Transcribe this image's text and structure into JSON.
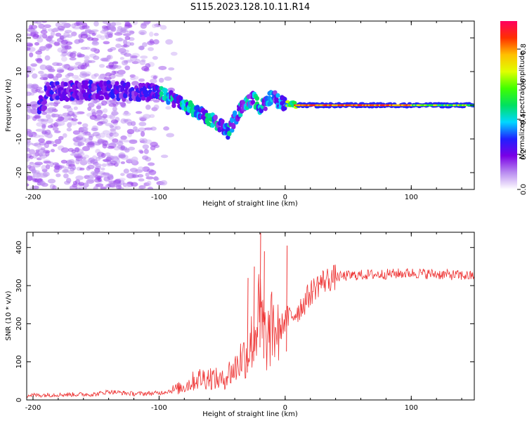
{
  "figure": {
    "title": "S115.2023.128.10.11.R14"
  },
  "chart_data": [
    {
      "type": "heatmap",
      "xlabel": "Height of straight line (km)",
      "ylabel": "Frequency (Hz)",
      "xlim": [
        -205,
        150
      ],
      "ylim": [
        -25,
        25
      ],
      "xticks": [
        -200,
        -100,
        0,
        100
      ],
      "yticks": [
        -20,
        -10,
        0,
        10,
        20
      ],
      "xtick_labels": [
        "-200",
        "-100",
        "0",
        "100"
      ],
      "ytick_labels": [
        "-20",
        "-10",
        "0",
        "10",
        "20"
      ],
      "grid": false,
      "colorbar": {
        "label": "Normalized spectral amplitude",
        "range": [
          0,
          0.96
        ],
        "ticks": [
          0.0,
          0.2,
          0.4,
          0.6,
          0.8
        ],
        "tick_labels": [
          "0.0",
          "0.2",
          "0.4",
          "0.6",
          "0.8"
        ],
        "colormap": [
          "#ffffff",
          "#b98cf0",
          "#7a00e6",
          "#2020ff",
          "#00d8ff",
          "#00e060",
          "#40ff00",
          "#e0ff00",
          "#ffc000",
          "#ff3000",
          "#ff0060"
        ]
      },
      "features": {
        "noise_region_x": [
          -205,
          -85
        ],
        "carrier_track": [
          {
            "x": -190,
            "y": 4
          },
          {
            "x": -150,
            "y": 4.5
          },
          {
            "x": -120,
            "y": 4
          },
          {
            "x": -100,
            "y": 3.5
          },
          {
            "x": -90,
            "y": 2
          },
          {
            "x": -80,
            "y": 0
          },
          {
            "x": -70,
            "y": -2
          },
          {
            "x": -60,
            "y": -4
          },
          {
            "x": -50,
            "y": -6
          },
          {
            "x": -45,
            "y": -8
          },
          {
            "x": -40,
            "y": -4
          },
          {
            "x": -35,
            "y": -1
          },
          {
            "x": -30,
            "y": 1
          },
          {
            "x": -25,
            "y": 2
          },
          {
            "x": -20,
            "y": -1
          },
          {
            "x": -15,
            "y": 1
          },
          {
            "x": -10,
            "y": 3
          },
          {
            "x": -5,
            "y": 1
          },
          {
            "x": 0,
            "y": 0.5
          },
          {
            "x": 10,
            "y": 0
          },
          {
            "x": 50,
            "y": 0
          },
          {
            "x": 100,
            "y": 0
          },
          {
            "x": 150,
            "y": 0
          }
        ]
      }
    },
    {
      "type": "line",
      "xlabel": "Height of straight line (km)",
      "ylabel": "SNR (10 * v/v)",
      "xlim": [
        -205,
        150
      ],
      "ylim": [
        0,
        440
      ],
      "xticks": [
        -200,
        -100,
        0,
        100
      ],
      "yticks": [
        0,
        100,
        200,
        300,
        400
      ],
      "xtick_labels": [
        "-200",
        "-100",
        "0",
        "100"
      ],
      "ytick_labels": [
        "0",
        "100",
        "200",
        "300",
        "400"
      ],
      "grid": false,
      "series": [
        {
          "color": "#ee3333",
          "x": [
            -205,
            -180,
            -150,
            -140,
            -120,
            -100,
            -90,
            -80,
            -70,
            -60,
            -50,
            -45,
            -40,
            -35,
            -30,
            -25,
            -20,
            -15,
            -10,
            -5,
            0,
            5,
            10,
            15,
            20,
            25,
            30,
            40,
            50,
            60,
            80,
            100,
            120,
            150
          ],
          "y": [
            12,
            14,
            15,
            22,
            16,
            18,
            25,
            35,
            55,
            60,
            50,
            70,
            80,
            110,
            120,
            170,
            230,
            150,
            190,
            180,
            210,
            220,
            235,
            255,
            280,
            300,
            312,
            322,
            326,
            328,
            330,
            333,
            330,
            325
          ]
        }
      ],
      "spikes": [
        {
          "x": -20,
          "y": 438
        },
        {
          "x": -17,
          "y": 390
        },
        {
          "x": -25,
          "y": 350
        },
        {
          "x": 1,
          "y": 405
        },
        {
          "x": -30,
          "y": 320
        }
      ]
    }
  ]
}
